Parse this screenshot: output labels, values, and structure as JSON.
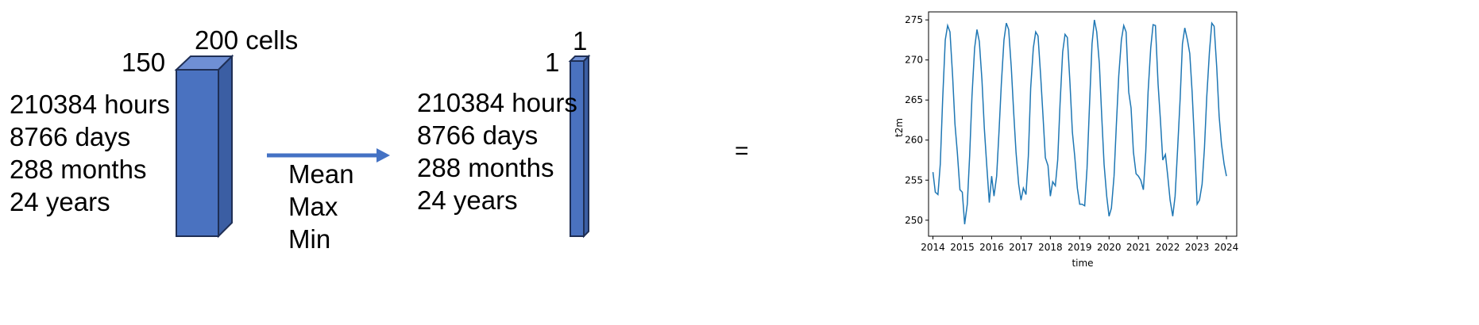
{
  "left_block": {
    "width_label": "200 cells",
    "height_label": "150",
    "time_lines": [
      "210384 hours",
      "8766 days",
      "288 months",
      "24 years"
    ]
  },
  "operations": [
    "Mean",
    "Max",
    "Min"
  ],
  "right_block": {
    "width_label": "1",
    "height_label": "1",
    "time_lines": [
      "210384 hours",
      "8766 days",
      "288 months",
      "24 years"
    ]
  },
  "equals": "=",
  "colors": {
    "box_front": "#4a72c0",
    "box_top": "#6f8fd4",
    "box_side": "#3b5ea3",
    "box_edge": "#1f2f55",
    "arrow": "#4472c4",
    "line": "#1f77b4"
  },
  "chart_data": {
    "type": "line",
    "xlabel": "time",
    "ylabel": "t2m",
    "xlim": [
      2013.85,
      2024.35
    ],
    "ylim": [
      248.0,
      276.0
    ],
    "xticks": [
      2014,
      2015,
      2016,
      2017,
      2018,
      2019,
      2020,
      2021,
      2022,
      2023,
      2024
    ],
    "yticks": [
      250,
      255,
      260,
      265,
      270,
      275
    ],
    "series": [
      {
        "x": [
          2014.0,
          2014.08,
          2014.17,
          2014.25,
          2014.33,
          2014.42,
          2014.5,
          2014.58,
          2014.67,
          2014.75,
          2014.83,
          2014.92,
          2015.0,
          2015.08,
          2015.17,
          2015.25,
          2015.33,
          2015.42,
          2015.5,
          2015.58,
          2015.67,
          2015.75,
          2015.83,
          2015.92,
          2016.0,
          2016.08,
          2016.17,
          2016.25,
          2016.33,
          2016.42,
          2016.5,
          2016.58,
          2016.67,
          2016.75,
          2016.83,
          2016.92,
          2017.0,
          2017.08,
          2017.17,
          2017.25,
          2017.33,
          2017.42,
          2017.5,
          2017.58,
          2017.67,
          2017.75,
          2017.83,
          2017.92,
          2018.0,
          2018.08,
          2018.17,
          2018.25,
          2018.33,
          2018.42,
          2018.5,
          2018.58,
          2018.67,
          2018.75,
          2018.83,
          2018.92,
          2019.0,
          2019.08,
          2019.17,
          2019.25,
          2019.33,
          2019.42,
          2019.5,
          2019.58,
          2019.67,
          2019.75,
          2019.83,
          2019.92,
          2020.0,
          2020.08,
          2020.17,
          2020.25,
          2020.33,
          2020.42,
          2020.5,
          2020.58,
          2020.67,
          2020.75,
          2020.83,
          2020.92,
          2021.0,
          2021.08,
          2021.17,
          2021.25,
          2021.33,
          2021.42,
          2021.5,
          2021.58,
          2021.67,
          2021.75,
          2021.83,
          2021.92,
          2022.0,
          2022.08,
          2022.17,
          2022.25,
          2022.33,
          2022.42,
          2022.5,
          2022.58,
          2022.67,
          2022.75,
          2022.83,
          2022.92,
          2023.0,
          2023.08,
          2023.17,
          2023.25,
          2023.33,
          2023.42,
          2023.5,
          2023.58,
          2023.67,
          2023.75,
          2023.83,
          2023.92,
          2024.0
        ],
        "y": [
          256.0,
          253.5,
          253.2,
          257.0,
          265.0,
          272.5,
          274.3,
          273.5,
          268.0,
          262.0,
          258.5,
          253.8,
          253.5,
          249.5,
          252.0,
          258.0,
          265.5,
          271.5,
          273.8,
          272.3,
          267.5,
          261.5,
          257.0,
          252.2,
          255.5,
          253.0,
          255.5,
          261.0,
          267.0,
          272.5,
          274.6,
          273.8,
          269.0,
          263.5,
          258.5,
          254.5,
          252.5,
          254.0,
          253.2,
          258.0,
          266.5,
          271.5,
          273.5,
          273.0,
          268.0,
          263.0,
          257.8,
          256.8,
          253.0,
          254.8,
          254.3,
          257.5,
          264.5,
          271.0,
          273.2,
          272.8,
          267.0,
          261.0,
          258.0,
          254.0,
          252.0,
          252.0,
          251.8,
          256.5,
          264.0,
          272.0,
          275.0,
          273.5,
          269.5,
          263.0,
          257.0,
          253.0,
          250.5,
          251.5,
          255.5,
          262.0,
          268.0,
          272.5,
          274.3,
          273.5,
          266.0,
          264.0,
          258.5,
          255.8,
          255.5,
          255.0,
          253.8,
          258.5,
          266.0,
          271.5,
          274.4,
          274.3,
          267.0,
          262.5,
          257.5,
          258.2,
          255.5,
          252.5,
          250.5,
          253.0,
          258.5,
          265.0,
          272.0,
          274.0,
          272.5,
          270.8,
          266.0,
          259.0,
          252.0,
          252.5,
          254.5,
          259.0,
          265.5,
          271.0,
          274.6,
          274.2,
          269.0,
          263.0,
          259.5,
          257.0,
          255.5
        ]
      }
    ]
  }
}
